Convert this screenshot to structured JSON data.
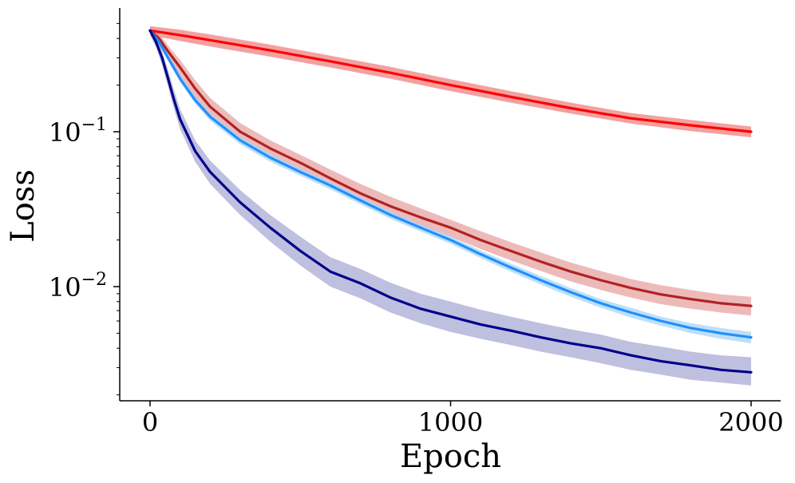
{
  "chart_data": {
    "type": "line",
    "title": "",
    "xlabel": "Epoch",
    "ylabel": "Loss",
    "yscale": "log",
    "xlim": [
      -100,
      2100
    ],
    "ylim": [
      0.0017,
      0.6
    ],
    "x_ticks": [
      0,
      1000,
      2000
    ],
    "x_tick_labels": [
      "0",
      "1000",
      "2000"
    ],
    "y_ticks": [
      0.1,
      0.01
    ],
    "y_tick_labels": [
      {
        "base": "10",
        "exp": "−1"
      },
      {
        "base": "10",
        "exp": "−2"
      }
    ],
    "grid": false,
    "legend": "none",
    "series": [
      {
        "name": "red",
        "color": "#ff0000",
        "band_color": "#f08080",
        "x": [
          0,
          100,
          200,
          400,
          600,
          800,
          1000,
          1200,
          1400,
          1600,
          1800,
          2000
        ],
        "values": [
          0.45,
          0.42,
          0.39,
          0.335,
          0.285,
          0.24,
          0.2,
          0.168,
          0.142,
          0.122,
          0.11,
          0.1
        ],
        "band_lower": [
          0.42,
          0.385,
          0.355,
          0.305,
          0.26,
          0.22,
          0.183,
          0.154,
          0.131,
          0.113,
          0.101,
          0.092
        ],
        "band_upper": [
          0.48,
          0.455,
          0.425,
          0.365,
          0.31,
          0.262,
          0.218,
          0.183,
          0.154,
          0.132,
          0.119,
          0.108
        ]
      },
      {
        "name": "firebrick",
        "color": "#b22222",
        "band_color": "#e7a3a3",
        "x": [
          0,
          30,
          60,
          100,
          150,
          200,
          300,
          400,
          500,
          600,
          700,
          800,
          900,
          1000,
          1100,
          1200,
          1300,
          1400,
          1500,
          1600,
          1700,
          1800,
          1900,
          2000
        ],
        "values": [
          0.45,
          0.4,
          0.33,
          0.26,
          0.19,
          0.145,
          0.1,
          0.078,
          0.063,
          0.05,
          0.04,
          0.033,
          0.028,
          0.024,
          0.02,
          0.017,
          0.0145,
          0.0125,
          0.011,
          0.0098,
          0.0089,
          0.0083,
          0.0078,
          0.0075
        ],
        "band_lower": [
          0.42,
          0.37,
          0.3,
          0.23,
          0.165,
          0.125,
          0.088,
          0.069,
          0.055,
          0.044,
          0.035,
          0.029,
          0.0245,
          0.021,
          0.0175,
          0.0148,
          0.0126,
          0.0108,
          0.0095,
          0.0085,
          0.0077,
          0.0072,
          0.0068,
          0.0065
        ],
        "band_upper": [
          0.48,
          0.43,
          0.36,
          0.29,
          0.215,
          0.165,
          0.114,
          0.088,
          0.071,
          0.057,
          0.046,
          0.038,
          0.032,
          0.027,
          0.0228,
          0.0194,
          0.0166,
          0.0143,
          0.0126,
          0.0112,
          0.0102,
          0.0095,
          0.0089,
          0.0086
        ]
      },
      {
        "name": "dodgerblue",
        "color": "#1e90ff",
        "band_color": "#a8d4f7",
        "x": [
          0,
          30,
          60,
          100,
          150,
          200,
          300,
          400,
          500,
          600,
          700,
          800,
          900,
          1000,
          1100,
          1200,
          1300,
          1400,
          1500,
          1600,
          1700,
          1800,
          1900,
          2000
        ],
        "values": [
          0.45,
          0.38,
          0.3,
          0.22,
          0.16,
          0.125,
          0.088,
          0.068,
          0.055,
          0.045,
          0.036,
          0.029,
          0.024,
          0.02,
          0.0162,
          0.0133,
          0.011,
          0.0092,
          0.0078,
          0.0068,
          0.006,
          0.0054,
          0.005,
          0.0047
        ],
        "band_lower": [
          0.43,
          0.36,
          0.285,
          0.208,
          0.152,
          0.118,
          0.083,
          0.064,
          0.052,
          0.0425,
          0.034,
          0.0274,
          0.0227,
          0.0189,
          0.0153,
          0.0125,
          0.0103,
          0.0086,
          0.0073,
          0.0063,
          0.0056,
          0.005,
          0.0046,
          0.0043
        ],
        "band_upper": [
          0.47,
          0.4,
          0.315,
          0.232,
          0.168,
          0.132,
          0.093,
          0.072,
          0.058,
          0.0475,
          0.038,
          0.0306,
          0.0253,
          0.0211,
          0.0171,
          0.0141,
          0.0117,
          0.0098,
          0.0083,
          0.0073,
          0.0064,
          0.0058,
          0.0054,
          0.0051
        ]
      },
      {
        "name": "navy",
        "color": "#00008b",
        "band_color": "#a9a9d6",
        "x": [
          0,
          20,
          40,
          60,
          80,
          100,
          150,
          200,
          300,
          400,
          500,
          600,
          700,
          800,
          900,
          1000,
          1100,
          1200,
          1300,
          1400,
          1500,
          1600,
          1700,
          1800,
          1900,
          2000
        ],
        "values": [
          0.45,
          0.38,
          0.3,
          0.22,
          0.16,
          0.12,
          0.075,
          0.055,
          0.035,
          0.024,
          0.017,
          0.0125,
          0.0105,
          0.0085,
          0.0072,
          0.0064,
          0.0057,
          0.0052,
          0.0047,
          0.0043,
          0.004,
          0.0036,
          0.0033,
          0.0031,
          0.0029,
          0.0028
        ],
        "band_lower": [
          0.42,
          0.35,
          0.27,
          0.195,
          0.14,
          0.104,
          0.064,
          0.046,
          0.029,
          0.0195,
          0.0137,
          0.01,
          0.0084,
          0.0068,
          0.0058,
          0.0051,
          0.0046,
          0.0042,
          0.0038,
          0.0035,
          0.0032,
          0.0029,
          0.0027,
          0.0025,
          0.0024,
          0.0023
        ],
        "band_upper": [
          0.48,
          0.41,
          0.33,
          0.25,
          0.185,
          0.14,
          0.088,
          0.065,
          0.042,
          0.029,
          0.021,
          0.0155,
          0.013,
          0.0106,
          0.009,
          0.008,
          0.0071,
          0.0064,
          0.0058,
          0.0053,
          0.0049,
          0.0044,
          0.0041,
          0.0038,
          0.0036,
          0.0035
        ]
      }
    ]
  }
}
